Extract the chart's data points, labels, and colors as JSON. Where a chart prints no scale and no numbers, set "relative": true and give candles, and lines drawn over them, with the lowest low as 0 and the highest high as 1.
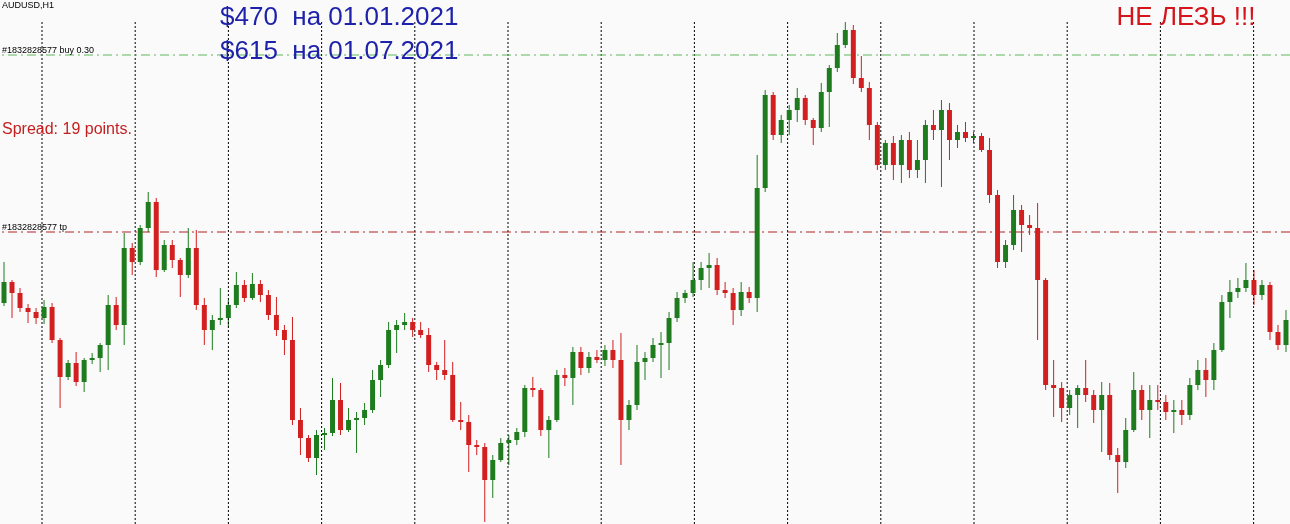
{
  "chart_data": {
    "type": "candlestick",
    "relative": true,
    "categories": [
      null,
      null,
      null,
      null,
      null,
      null,
      null,
      null,
      null,
      null,
      null,
      null,
      null,
      null,
      null,
      null,
      null,
      null,
      null,
      null,
      null,
      null,
      null,
      null,
      null,
      null,
      null,
      null,
      null,
      null,
      null,
      null,
      null,
      null,
      null,
      null,
      null,
      null,
      null,
      null,
      null,
      null,
      null,
      null,
      null,
      null,
      null,
      null,
      null,
      null,
      null,
      null,
      null,
      null,
      null,
      null,
      null,
      null,
      null,
      null,
      null,
      null,
      null,
      null,
      null,
      null,
      null,
      null,
      null,
      null,
      null,
      null,
      null,
      null,
      null,
      null,
      null,
      null,
      null,
      null,
      null,
      null,
      null,
      null,
      null,
      null,
      null,
      null,
      null,
      null,
      null,
      null,
      null,
      null,
      null,
      null,
      null,
      null,
      null,
      null,
      null,
      null,
      null,
      null,
      null,
      null,
      null,
      null,
      null,
      null,
      null,
      null,
      null,
      null,
      null,
      null,
      null,
      null,
      null,
      null,
      null,
      null,
      null,
      null,
      null,
      null,
      null,
      null,
      null,
      null,
      null,
      null,
      null,
      null,
      null,
      null,
      null,
      null,
      null,
      null,
      null,
      null,
      null,
      null,
      null,
      null,
      null,
      null,
      null,
      null,
      null,
      null,
      null,
      null,
      null,
      null,
      null,
      null,
      null,
      null,
      null
    ],
    "ohlc": [
      [
        0.438,
        0.52,
        0.432,
        0.48
      ],
      [
        0.48,
        0.484,
        0.408,
        0.458
      ],
      [
        0.458,
        0.468,
        0.42,
        0.428
      ],
      [
        0.428,
        0.436,
        0.398,
        0.42
      ],
      [
        0.42,
        0.428,
        0.396,
        0.408
      ],
      [
        0.408,
        0.444,
        0.396,
        0.43
      ],
      [
        0.43,
        0.438,
        0.358,
        0.364
      ],
      [
        0.364,
        0.368,
        0.228,
        0.29
      ],
      [
        0.29,
        0.324,
        0.284,
        0.318
      ],
      [
        0.318,
        0.34,
        0.272,
        0.28
      ],
      [
        0.28,
        0.328,
        0.26,
        0.324
      ],
      [
        0.324,
        0.338,
        0.316,
        0.328
      ],
      [
        0.328,
        0.358,
        0.3,
        0.354
      ],
      [
        0.354,
        0.454,
        0.304,
        0.434
      ],
      [
        0.434,
        0.45,
        0.384,
        0.394
      ],
      [
        0.394,
        0.578,
        0.354,
        0.548
      ],
      [
        0.548,
        0.558,
        0.494,
        0.52
      ],
      [
        0.52,
        0.594,
        0.514,
        0.588
      ],
      [
        0.588,
        0.66,
        0.58,
        0.64
      ],
      [
        0.64,
        0.648,
        0.49,
        0.504
      ],
      [
        0.504,
        0.564,
        0.5,
        0.554
      ],
      [
        0.554,
        0.564,
        0.508,
        0.524
      ],
      [
        0.524,
        0.528,
        0.45,
        0.494
      ],
      [
        0.494,
        0.588,
        0.488,
        0.548
      ],
      [
        0.548,
        0.584,
        0.424,
        0.434
      ],
      [
        0.434,
        0.448,
        0.354,
        0.384
      ],
      [
        0.384,
        0.414,
        0.344,
        0.404
      ],
      [
        0.404,
        0.468,
        0.394,
        0.408
      ],
      [
        0.408,
        0.444,
        0.39,
        0.434
      ],
      [
        0.434,
        0.5,
        0.428,
        0.474
      ],
      [
        0.474,
        0.484,
        0.44,
        0.448
      ],
      [
        0.448,
        0.498,
        0.444,
        0.476
      ],
      [
        0.476,
        0.484,
        0.44,
        0.454
      ],
      [
        0.454,
        0.464,
        0.404,
        0.414
      ],
      [
        0.414,
        0.45,
        0.372,
        0.384
      ],
      [
        0.384,
        0.394,
        0.334,
        0.364
      ],
      [
        0.364,
        0.41,
        0.194,
        0.204
      ],
      [
        0.204,
        0.228,
        0.134,
        0.168
      ],
      [
        0.168,
        0.174,
        0.12,
        0.128
      ],
      [
        0.128,
        0.184,
        0.094,
        0.174
      ],
      [
        0.174,
        0.188,
        0.144,
        0.178
      ],
      [
        0.178,
        0.288,
        0.172,
        0.244
      ],
      [
        0.244,
        0.278,
        0.174,
        0.184
      ],
      [
        0.184,
        0.228,
        0.18,
        0.204
      ],
      [
        0.204,
        0.22,
        0.138,
        0.208
      ],
      [
        0.208,
        0.238,
        0.194,
        0.224
      ],
      [
        0.224,
        0.304,
        0.218,
        0.284
      ],
      [
        0.284,
        0.324,
        0.25,
        0.314
      ],
      [
        0.314,
        0.4,
        0.308,
        0.384
      ],
      [
        0.384,
        0.404,
        0.338,
        0.394
      ],
      [
        0.394,
        0.418,
        0.384,
        0.4
      ],
      [
        0.4,
        0.408,
        0.37,
        0.384
      ],
      [
        0.384,
        0.4,
        0.368,
        0.374
      ],
      [
        0.374,
        0.388,
        0.3,
        0.314
      ],
      [
        0.314,
        0.32,
        0.284,
        0.304
      ],
      [
        0.304,
        0.364,
        0.284,
        0.294
      ],
      [
        0.294,
        0.32,
        0.2,
        0.204
      ],
      [
        0.204,
        0.24,
        0.184,
        0.2
      ],
      [
        0.2,
        0.214,
        0.1,
        0.154
      ],
      [
        0.154,
        0.164,
        0.134,
        0.15
      ],
      [
        0.15,
        0.158,
        0,
        0.084
      ],
      [
        0.084,
        0.134,
        0.048,
        0.124
      ],
      [
        0.124,
        0.168,
        0.12,
        0.158
      ],
      [
        0.158,
        0.174,
        0.114,
        0.164
      ],
      [
        0.164,
        0.188,
        0.154,
        0.18
      ],
      [
        0.18,
        0.274,
        0.17,
        0.268
      ],
      [
        0.268,
        0.29,
        0.25,
        0.264
      ],
      [
        0.264,
        0.268,
        0.172,
        0.184
      ],
      [
        0.184,
        0.212,
        0.128,
        0.204
      ],
      [
        0.204,
        0.304,
        0.2,
        0.294
      ],
      [
        0.294,
        0.308,
        0.272,
        0.288
      ],
      [
        0.288,
        0.35,
        0.234,
        0.34
      ],
      [
        0.34,
        0.35,
        0.294,
        0.308
      ],
      [
        0.308,
        0.34,
        0.298,
        0.33
      ],
      [
        0.33,
        0.344,
        0.318,
        0.324
      ],
      [
        0.324,
        0.354,
        0.312,
        0.344
      ],
      [
        0.344,
        0.364,
        0.308,
        0.324
      ],
      [
        0.324,
        0.378,
        0.114,
        0.204
      ],
      [
        0.204,
        0.244,
        0.184,
        0.234
      ],
      [
        0.234,
        0.354,
        0.224,
        0.32
      ],
      [
        0.32,
        0.34,
        0.284,
        0.328
      ],
      [
        0.328,
        0.368,
        0.32,
        0.354
      ],
      [
        0.354,
        0.38,
        0.288,
        0.358
      ],
      [
        0.358,
        0.42,
        0.304,
        0.408
      ],
      [
        0.408,
        0.46,
        0.4,
        0.448
      ],
      [
        0.448,
        0.464,
        0.438,
        0.458
      ],
      [
        0.458,
        0.52,
        0.45,
        0.484
      ],
      [
        0.484,
        0.52,
        0.464,
        0.508
      ],
      [
        0.508,
        0.538,
        0.468,
        0.514
      ],
      [
        0.514,
        0.528,
        0.454,
        0.464
      ],
      [
        0.464,
        0.48,
        0.448,
        0.458
      ],
      [
        0.458,
        0.468,
        0.394,
        0.424
      ],
      [
        0.424,
        0.48,
        0.412,
        0.46
      ],
      [
        0.46,
        0.47,
        0.438,
        0.448
      ],
      [
        0.448,
        0.734,
        0.42,
        0.668
      ],
      [
        0.668,
        0.864,
        0.66,
        0.854
      ],
      [
        0.854,
        0.86,
        0.764,
        0.774
      ],
      [
        0.774,
        0.814,
        0.758,
        0.804
      ],
      [
        0.804,
        0.834,
        0.774,
        0.824
      ],
      [
        0.824,
        0.868,
        0.8,
        0.848
      ],
      [
        0.848,
        0.854,
        0.794,
        0.804
      ],
      [
        0.804,
        0.808,
        0.754,
        0.788
      ],
      [
        0.788,
        0.878,
        0.78,
        0.86
      ],
      [
        0.86,
        0.914,
        0.79,
        0.908
      ],
      [
        0.908,
        0.978,
        0.9,
        0.954
      ],
      [
        0.954,
        1,
        0.948,
        0.984
      ],
      [
        0.984,
        0.994,
        0.876,
        0.888
      ],
      [
        0.888,
        0.932,
        0.86,
        0.868
      ],
      [
        0.868,
        0.88,
        0.764,
        0.794
      ],
      [
        0.794,
        0.8,
        0.704,
        0.714
      ],
      [
        0.714,
        0.764,
        0.704,
        0.758
      ],
      [
        0.758,
        0.772,
        0.684,
        0.714
      ],
      [
        0.714,
        0.774,
        0.678,
        0.764
      ],
      [
        0.764,
        0.78,
        0.688,
        0.704
      ],
      [
        0.704,
        0.764,
        0.688,
        0.724
      ],
      [
        0.724,
        0.804,
        0.678,
        0.794
      ],
      [
        0.794,
        0.824,
        0.764,
        0.784
      ],
      [
        0.784,
        0.844,
        0.67,
        0.824
      ],
      [
        0.824,
        0.838,
        0.724,
        0.764
      ],
      [
        0.764,
        0.794,
        0.748,
        0.78
      ],
      [
        0.78,
        0.8,
        0.76,
        0.768
      ],
      [
        0.768,
        0.78,
        0.758,
        0.772
      ],
      [
        0.772,
        0.778,
        0.74,
        0.744
      ],
      [
        0.744,
        0.768,
        0.638,
        0.654
      ],
      [
        0.654,
        0.664,
        0.508,
        0.52
      ],
      [
        0.52,
        0.564,
        0.508,
        0.554
      ],
      [
        0.554,
        0.654,
        0.544,
        0.624
      ],
      [
        0.624,
        0.634,
        0.54,
        0.594
      ],
      [
        0.594,
        0.614,
        0.574,
        0.588
      ],
      [
        0.588,
        0.638,
        0.364,
        0.484
      ],
      [
        0.484,
        0.488,
        0.264,
        0.274
      ],
      [
        0.274,
        0.324,
        0.21,
        0.268
      ],
      [
        0.268,
        0.28,
        0.2,
        0.228
      ],
      [
        0.228,
        0.264,
        0.214,
        0.254
      ],
      [
        0.254,
        0.274,
        0.188,
        0.268
      ],
      [
        0.268,
        0.324,
        0.24,
        0.254
      ],
      [
        0.254,
        0.264,
        0.198,
        0.224
      ],
      [
        0.224,
        0.28,
        0.14,
        0.254
      ],
      [
        0.254,
        0.278,
        0.124,
        0.134
      ],
      [
        0.134,
        0.148,
        0.058,
        0.12
      ],
      [
        0.12,
        0.208,
        0.108,
        0.184
      ],
      [
        0.184,
        0.3,
        0.18,
        0.264
      ],
      [
        0.264,
        0.274,
        0.204,
        0.224
      ],
      [
        0.224,
        0.274,
        0.168,
        0.244
      ],
      [
        0.244,
        0.274,
        0.224,
        0.24
      ],
      [
        0.24,
        0.254,
        0.204,
        0.22
      ],
      [
        0.22,
        0.244,
        0.178,
        0.224
      ],
      [
        0.224,
        0.244,
        0.194,
        0.214
      ],
      [
        0.214,
        0.288,
        0.204,
        0.274
      ],
      [
        0.274,
        0.324,
        0.264,
        0.304
      ],
      [
        0.304,
        0.328,
        0.25,
        0.284
      ],
      [
        0.284,
        0.358,
        0.264,
        0.344
      ],
      [
        0.344,
        0.454,
        0.34,
        0.44
      ],
      [
        0.44,
        0.484,
        0.408,
        0.46
      ],
      [
        0.46,
        0.488,
        0.448,
        0.468
      ],
      [
        0.468,
        0.518,
        0.46,
        0.484
      ],
      [
        0.484,
        0.504,
        0.434,
        0.454
      ],
      [
        0.454,
        0.484,
        0.444,
        0.474
      ],
      [
        0.474,
        0.48,
        0.364,
        0.38
      ],
      [
        0.38,
        0.394,
        0.344,
        0.354
      ],
      [
        0.354,
        0.424,
        0.34,
        0.404
      ]
    ],
    "colors": [
      "#1e7b1e",
      "#d21f1f",
      "#d21f1f",
      "#d21f1f",
      "#d21f1f",
      "#1e7b1e",
      "#d21f1f",
      "#d21f1f",
      "#1e7b1e",
      "#d21f1f",
      "#1e7b1e",
      "#1e7b1e",
      "#1e7b1e",
      "#1e7b1e",
      "#d21f1f",
      "#1e7b1e",
      "#d21f1f",
      "#1e7b1e",
      "#1e7b1e",
      "#d21f1f",
      "#1e7b1e",
      "#d21f1f",
      "#d21f1f",
      "#1e7b1e",
      "#d21f1f",
      "#d21f1f",
      "#1e7b1e",
      "#1e7b1e",
      "#1e7b1e",
      "#1e7b1e",
      "#d21f1f",
      "#1e7b1e",
      "#d21f1f",
      "#d21f1f",
      "#d21f1f",
      "#d21f1f",
      "#d21f1f",
      "#d21f1f",
      "#d21f1f",
      "#1e7b1e",
      "#1e7b1e",
      "#1e7b1e",
      "#d21f1f",
      "#1e7b1e",
      "#1e7b1e",
      "#1e7b1e",
      "#1e7b1e",
      "#1e7b1e",
      "#1e7b1e",
      "#1e7b1e",
      "#1e7b1e",
      "#d21f1f",
      "#d21f1f",
      "#d21f1f",
      "#d21f1f",
      "#d21f1f",
      "#d21f1f",
      "#d21f1f",
      "#d21f1f",
      "#d21f1f",
      "#d21f1f",
      "#1e7b1e",
      "#1e7b1e",
      "#1e7b1e",
      "#1e7b1e",
      "#1e7b1e",
      "#d21f1f",
      "#d21f1f",
      "#1e7b1e",
      "#1e7b1e",
      "#d21f1f",
      "#1e7b1e",
      "#d21f1f",
      "#1e7b1e",
      "#d21f1f",
      "#1e7b1e",
      "#d21f1f",
      "#d21f1f",
      "#1e7b1e",
      "#1e7b1e",
      "#1e7b1e",
      "#1e7b1e",
      "#1e7b1e",
      "#1e7b1e",
      "#1e7b1e",
      "#1e7b1e",
      "#1e7b1e",
      "#1e7b1e",
      "#1e7b1e",
      "#d21f1f",
      "#d21f1f",
      "#d21f1f",
      "#1e7b1e",
      "#d21f1f",
      "#1e7b1e",
      "#1e7b1e",
      "#d21f1f",
      "#1e7b1e",
      "#1e7b1e",
      "#1e7b1e",
      "#d21f1f",
      "#d21f1f",
      "#1e7b1e",
      "#1e7b1e",
      "#1e7b1e",
      "#1e7b1e",
      "#d21f1f",
      "#d21f1f",
      "#d21f1f",
      "#d21f1f",
      "#1e7b1e",
      "#d21f1f",
      "#1e7b1e",
      "#d21f1f",
      "#1e7b1e",
      "#1e7b1e",
      "#d21f1f",
      "#1e7b1e",
      "#d21f1f",
      "#1e7b1e",
      "#d21f1f",
      "#1e7b1e",
      "#d21f1f",
      "#d21f1f",
      "#d21f1f",
      "#1e7b1e",
      "#1e7b1e",
      "#d21f1f",
      "#d21f1f",
      "#d21f1f",
      "#d21f1f",
      "#d21f1f",
      "#d21f1f",
      "#1e7b1e",
      "#1e7b1e",
      "#d21f1f",
      "#d21f1f",
      "#1e7b1e",
      "#d21f1f",
      "#d21f1f",
      "#1e7b1e",
      "#1e7b1e",
      "#d21f1f",
      "#1e7b1e",
      "#d21f1f",
      "#d21f1f",
      "#1e7b1e",
      "#d21f1f",
      "#1e7b1e",
      "#1e7b1e",
      "#d21f1f",
      "#1e7b1e",
      "#1e7b1e",
      "#1e7b1e",
      "#1e7b1e",
      "#1e7b1e",
      "#d21f1f",
      "#1e7b1e",
      "#d21f1f",
      "#d21f1f",
      "#1e7b1e"
    ],
    "ref_lines": [
      {
        "axis": "y",
        "value": 0.934,
        "label": "#1832828577 buy 0.30",
        "color": "#5cb85c",
        "line_style": "dashed"
      },
      {
        "axis": "y",
        "value": 0.58,
        "label": "#1832828577 tp",
        "color": "#b22222",
        "line_style": "dashed"
      }
    ],
    "annotations": [
      "AUDUSD,H1",
      "Spread: 19 points.",
      "$470  на 01.01.2021",
      "$615  на 01.07.2021",
      "НЕ ЛЕЗЬ !!!"
    ]
  }
}
